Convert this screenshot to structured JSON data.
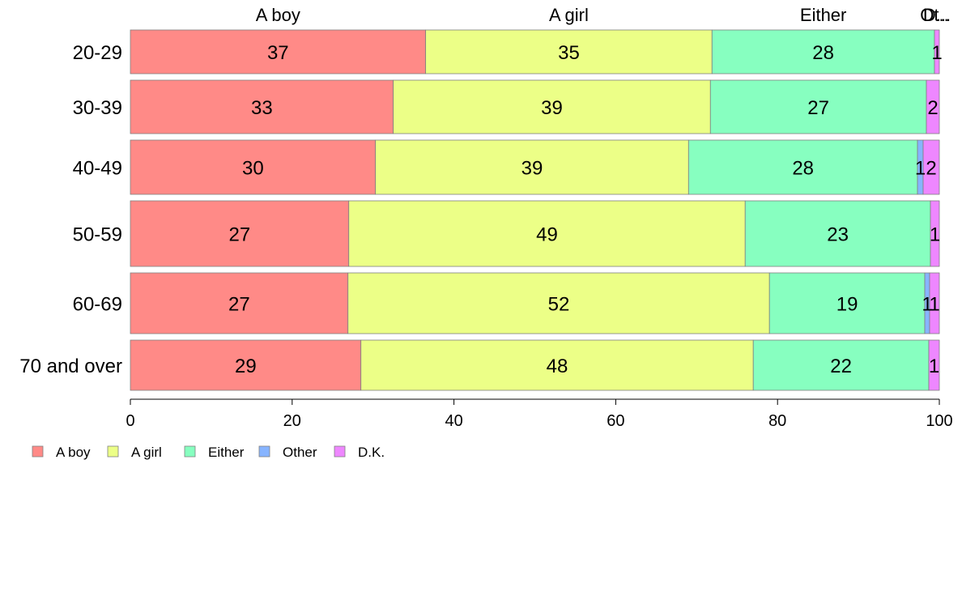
{
  "chart_data": {
    "type": "bar",
    "orientation": "horizontal",
    "stacked": true,
    "categories": [
      "20-29",
      "30-39",
      "40-49",
      "50-59",
      "60-69",
      "70 and over"
    ],
    "series": [
      {
        "name": "A boy",
        "color": "#ff8a87",
        "values": [
          36.5,
          32.5,
          30.3,
          27.0,
          26.9,
          28.5
        ],
        "labels": [
          "37",
          "33",
          "30",
          "27",
          "27",
          "29"
        ]
      },
      {
        "name": "A girl",
        "color": "#ecff87",
        "values": [
          35.4,
          39.2,
          38.7,
          49.0,
          52.1,
          48.5
        ],
        "labels": [
          "35",
          "39",
          "39",
          "49",
          "52",
          "48"
        ]
      },
      {
        "name": "Either",
        "color": "#87ffc0",
        "values": [
          27.5,
          26.7,
          28.3,
          22.9,
          19.2,
          21.7
        ],
        "labels": [
          "28",
          "27",
          "28",
          "23",
          "19",
          "22"
        ]
      },
      {
        "name": "Other",
        "color": "#87b4ff",
        "values": [
          0,
          0,
          0.7,
          0,
          0.6,
          0
        ],
        "labels": [
          "",
          "",
          "1",
          "",
          "1",
          ""
        ]
      },
      {
        "name": "D.K.",
        "color": "#ee87ff",
        "values": [
          0.6,
          1.6,
          2.0,
          1.1,
          1.2,
          1.3
        ],
        "labels": [
          "1",
          "2",
          "2",
          "1",
          "1",
          "1"
        ]
      }
    ],
    "top_labels": [
      "A boy",
      "A girl",
      "Either",
      "Ot..",
      "D..."
    ],
    "xlim": [
      0,
      100
    ],
    "xticks": [
      0,
      20,
      40,
      60,
      80,
      100
    ],
    "xlabel": "",
    "ylabel": "",
    "title": "",
    "grid": false,
    "legend_position": "bottom-left"
  }
}
